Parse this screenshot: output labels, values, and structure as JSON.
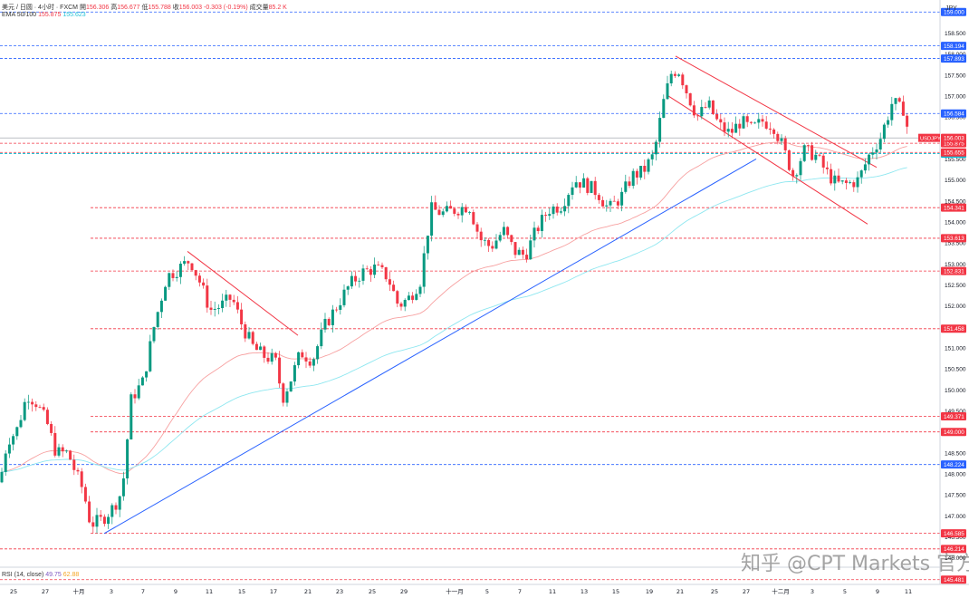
{
  "header": {
    "symbol": "美元 / 日圆 · 4小时 · FXCM",
    "open_label": "開",
    "open": "156.306",
    "high_label": "高",
    "high": "156.677",
    "low_label": "低",
    "low": "155.788",
    "close_label": "收",
    "close": "156.003",
    "change": "-0.303 (-0.19%)",
    "volume_label": "成交量",
    "volume": "85.2 K",
    "ema_label": "EMA 50/100",
    "ema50": "155.875",
    "ema100": "155.623"
  },
  "rsi": {
    "label": "RSI (14, close)",
    "value1": "49.75",
    "value2": "62.88"
  },
  "currency": "JPY",
  "watermark": "知乎 @CPT Markets 官方",
  "chart_data": {
    "type": "candlestick",
    "symbol_tag": "USDJPY",
    "ylim": [
      145.8,
      159.2
    ],
    "ytick_values": [
      146.0,
      146.5,
      147.0,
      147.5,
      148.0,
      148.5,
      149.0,
      149.5,
      150.0,
      150.5,
      151.0,
      151.5,
      152.0,
      152.5,
      153.0,
      153.5,
      154.0,
      154.5,
      155.0,
      155.5,
      156.0,
      156.5,
      157.0,
      157.5,
      158.0,
      158.5,
      159.0
    ],
    "ytick_labels": [
      "146.000",
      "146.500",
      "147.000",
      "147.500",
      "148.000",
      "148.500",
      "149.000",
      "149.500",
      "150.000",
      "150.500",
      "151.000",
      "151.500",
      "152.000",
      "152.500",
      "153.000",
      "153.500",
      "154.000",
      "154.500",
      "155.000",
      "155.500",
      "156.000",
      "156.500",
      "157.000",
      "157.500",
      "158.000",
      "158.500",
      "159.000"
    ],
    "xtick_labels": [
      "25",
      "27",
      "十月",
      "3",
      "7",
      "9",
      "11",
      "15",
      "17",
      "21",
      "23",
      "25",
      "29",
      "十一月",
      "5",
      "7",
      "11",
      "13",
      "15",
      "19",
      "21",
      "25",
      "27",
      "十二月",
      "3",
      "5",
      "9",
      "11"
    ],
    "xtick_positions": [
      15,
      50,
      87,
      123,
      158,
      194,
      231,
      267,
      302,
      340,
      375,
      411,
      446,
      502,
      538,
      574,
      610,
      645,
      680,
      717,
      751,
      789,
      824,
      862,
      897,
      933,
      969,
      1003
    ],
    "levels": [
      {
        "price": 159.0,
        "label": "159.000",
        "color": "#2962ff"
      },
      {
        "price": 158.194,
        "label": "158.194",
        "color": "#2962ff"
      },
      {
        "price": 157.893,
        "label": "157.893",
        "color": "#2962ff"
      },
      {
        "price": 156.584,
        "label": "156.584",
        "color": "#2962ff"
      },
      {
        "price": 155.627,
        "label": "155.627",
        "color": "#00bcd4"
      },
      {
        "price": 155.655,
        "label": "155.655",
        "color": "#f23645"
      },
      {
        "price": 155.875,
        "label": "155.875",
        "color": "#f23645"
      },
      {
        "price": 154.341,
        "label": "154.341",
        "color": "#f23645"
      },
      {
        "price": 153.613,
        "label": "153.613",
        "color": "#f23645"
      },
      {
        "price": 152.831,
        "label": "152.831",
        "color": "#f23645"
      },
      {
        "price": 151.458,
        "label": "151.458",
        "color": "#f23645"
      },
      {
        "price": 149.371,
        "label": "149.371",
        "color": "#f23645"
      },
      {
        "price": 149.0,
        "label": "149.000",
        "color": "#f23645"
      },
      {
        "price": 148.224,
        "label": "148.224",
        "color": "#2962ff"
      },
      {
        "price": 146.585,
        "label": "146.585",
        "color": "#f23645"
      },
      {
        "price": 146.214,
        "label": "146.214",
        "color": "#f23645"
      },
      {
        "price": 145.481,
        "label": "145.481",
        "color": "#f23645"
      }
    ],
    "last_price": {
      "price": 156.003,
      "label": "156.003"
    },
    "trendlines": [
      {
        "name": "support",
        "color": "#2962ff",
        "from": [
          115,
          146.58
        ],
        "to": [
          835,
          155.5
        ]
      },
      {
        "name": "channel-top-1",
        "color": "#f23645",
        "from": [
          207,
          153.3
        ],
        "to": [
          329,
          151.3
        ]
      },
      {
        "name": "channel-top-2",
        "color": "#f23645",
        "from": [
          746,
          157.95
        ],
        "to": [
          968,
          155.3
        ]
      },
      {
        "name": "channel-bottom",
        "color": "#f23645",
        "from": [
          738,
          157.0
        ],
        "to": [
          958,
          153.95
        ]
      }
    ],
    "anchors": [
      [
        0,
        147.8
      ],
      [
        8,
        148.8
      ],
      [
        18,
        149.0
      ],
      [
        30,
        149.9
      ],
      [
        40,
        149.7
      ],
      [
        52,
        149.2
      ],
      [
        62,
        148.5
      ],
      [
        75,
        148.5
      ],
      [
        84,
        148.0
      ],
      [
        92,
        147.6
      ],
      [
        100,
        146.8
      ],
      [
        112,
        146.9
      ],
      [
        125,
        147.2
      ],
      [
        135,
        147.6
      ],
      [
        145,
        149.8
      ],
      [
        158,
        150.2
      ],
      [
        170,
        151.5
      ],
      [
        184,
        152.7
      ],
      [
        198,
        152.9
      ],
      [
        210,
        153.1
      ],
      [
        222,
        152.5
      ],
      [
        232,
        151.9
      ],
      [
        244,
        152.0
      ],
      [
        256,
        152.2
      ],
      [
        268,
        151.5
      ],
      [
        280,
        151.0
      ],
      [
        292,
        150.8
      ],
      [
        304,
        150.7
      ],
      [
        312,
        149.8
      ],
      [
        322,
        150.3
      ],
      [
        332,
        150.9
      ],
      [
        345,
        150.7
      ],
      [
        358,
        151.5
      ],
      [
        372,
        152.0
      ],
      [
        386,
        152.5
      ],
      [
        400,
        152.8
      ],
      [
        414,
        152.9
      ],
      [
        428,
        152.7
      ],
      [
        440,
        152.0
      ],
      [
        452,
        152.2
      ],
      [
        464,
        152.6
      ],
      [
        476,
        154.3
      ],
      [
        490,
        154.2
      ],
      [
        504,
        154.3
      ],
      [
        518,
        154.4
      ],
      [
        530,
        153.6
      ],
      [
        542,
        153.4
      ],
      [
        556,
        153.8
      ],
      [
        568,
        153.3
      ],
      [
        580,
        153.2
      ],
      [
        592,
        153.8
      ],
      [
        606,
        154.3
      ],
      [
        620,
        154.4
      ],
      [
        634,
        155.0
      ],
      [
        646,
        154.9
      ],
      [
        660,
        154.7
      ],
      [
        672,
        154.3
      ],
      [
        686,
        154.6
      ],
      [
        698,
        155.1
      ],
      [
        710,
        155.2
      ],
      [
        722,
        155.6
      ],
      [
        732,
        156.8
      ],
      [
        742,
        157.6
      ],
      [
        750,
        157.6
      ],
      [
        760,
        157.0
      ],
      [
        770,
        156.5
      ],
      [
        782,
        156.8
      ],
      [
        794,
        156.3
      ],
      [
        806,
        156.1
      ],
      [
        818,
        156.4
      ],
      [
        830,
        156.2
      ],
      [
        842,
        156.4
      ],
      [
        854,
        156.3
      ],
      [
        864,
        155.8
      ],
      [
        876,
        155.1
      ],
      [
        888,
        155.7
      ],
      [
        900,
        155.6
      ],
      [
        912,
        155.2
      ],
      [
        924,
        154.9
      ],
      [
        936,
        154.9
      ],
      [
        948,
        155.0
      ],
      [
        960,
        155.6
      ],
      [
        972,
        156.0
      ],
      [
        980,
        156.5
      ],
      [
        986,
        156.9
      ],
      [
        992,
        156.7
      ],
      [
        998,
        156.7
      ],
      [
        1004,
        156.0
      ]
    ]
  }
}
